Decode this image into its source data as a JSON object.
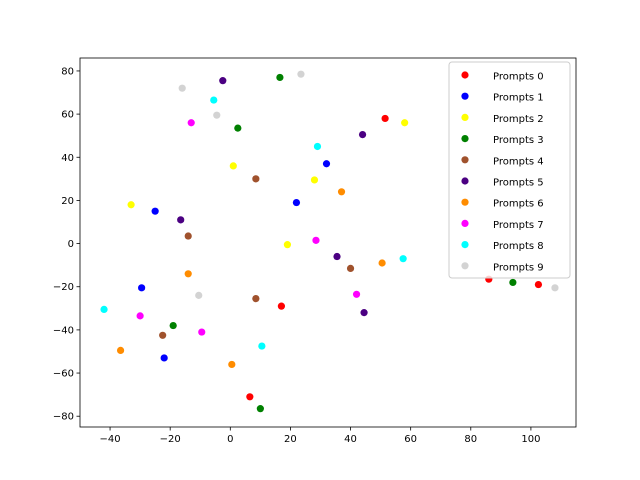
{
  "chart_data": {
    "type": "scatter",
    "title": "",
    "xlabel": "",
    "ylabel": "",
    "xlim": [
      -50,
      115
    ],
    "ylim": [
      -85,
      86
    ],
    "xticks": [
      -40,
      -20,
      0,
      20,
      40,
      60,
      80,
      100
    ],
    "yticks": [
      -80,
      -60,
      -40,
      -20,
      0,
      20,
      40,
      60,
      80
    ],
    "grid": false,
    "legend_position": "top-right",
    "series": [
      {
        "name": "Prompts 0",
        "color": "#ff0000",
        "points": [
          [
            51.5,
            58
          ],
          [
            17,
            -29
          ],
          [
            6.5,
            -71
          ],
          [
            86,
            -16.5
          ],
          [
            102.5,
            -19
          ]
        ]
      },
      {
        "name": "Prompts 1",
        "color": "#0000ff",
        "points": [
          [
            -25,
            15
          ],
          [
            32,
            37
          ],
          [
            22,
            19
          ],
          [
            -29.5,
            -20.5
          ],
          [
            -22,
            -53
          ]
        ]
      },
      {
        "name": "Prompts 2",
        "color": "#ffff00",
        "points": [
          [
            1,
            36
          ],
          [
            58,
            56
          ],
          [
            28,
            29.5
          ],
          [
            -33,
            18
          ],
          [
            19,
            -0.5
          ]
        ]
      },
      {
        "name": "Prompts 3",
        "color": "#008000",
        "points": [
          [
            16.5,
            77
          ],
          [
            2.5,
            53.5
          ],
          [
            -19,
            -38
          ],
          [
            10,
            -76.5
          ],
          [
            94,
            -18
          ]
        ]
      },
      {
        "name": "Prompts 4",
        "color": "#a0522d",
        "points": [
          [
            8.5,
            30
          ],
          [
            -14,
            3.5
          ],
          [
            40,
            -11.5
          ],
          [
            8.5,
            -25.5
          ],
          [
            -22.5,
            -42.5
          ]
        ]
      },
      {
        "name": "Prompts 5",
        "color": "#4b0082",
        "points": [
          [
            -2.5,
            75.5
          ],
          [
            44,
            50.5
          ],
          [
            -16.5,
            11
          ],
          [
            35.5,
            -6
          ],
          [
            44.5,
            -32
          ]
        ]
      },
      {
        "name": "Prompts 6",
        "color": "#ff8c00",
        "points": [
          [
            37,
            24
          ],
          [
            50.5,
            -9
          ],
          [
            -14,
            -14
          ],
          [
            -36.5,
            -49.5
          ],
          [
            0.5,
            -56
          ]
        ]
      },
      {
        "name": "Prompts 7",
        "color": "#ff00ff",
        "points": [
          [
            -13,
            56
          ],
          [
            28.5,
            1.5
          ],
          [
            42,
            -23.5
          ],
          [
            -30,
            -33.5
          ],
          [
            -9.5,
            -41
          ]
        ]
      },
      {
        "name": "Prompts 8",
        "color": "#00ffff",
        "points": [
          [
            -5.5,
            66.5
          ],
          [
            29,
            45
          ],
          [
            57.5,
            -7
          ],
          [
            -42,
            -30.5
          ],
          [
            10.5,
            -47.5
          ]
        ]
      },
      {
        "name": "Prompts 9",
        "color": "#d3d3d3",
        "points": [
          [
            23.5,
            78.5
          ],
          [
            -16,
            72
          ],
          [
            -4.5,
            59.5
          ],
          [
            -10.5,
            -24
          ],
          [
            108,
            -20.5
          ]
        ]
      }
    ]
  }
}
